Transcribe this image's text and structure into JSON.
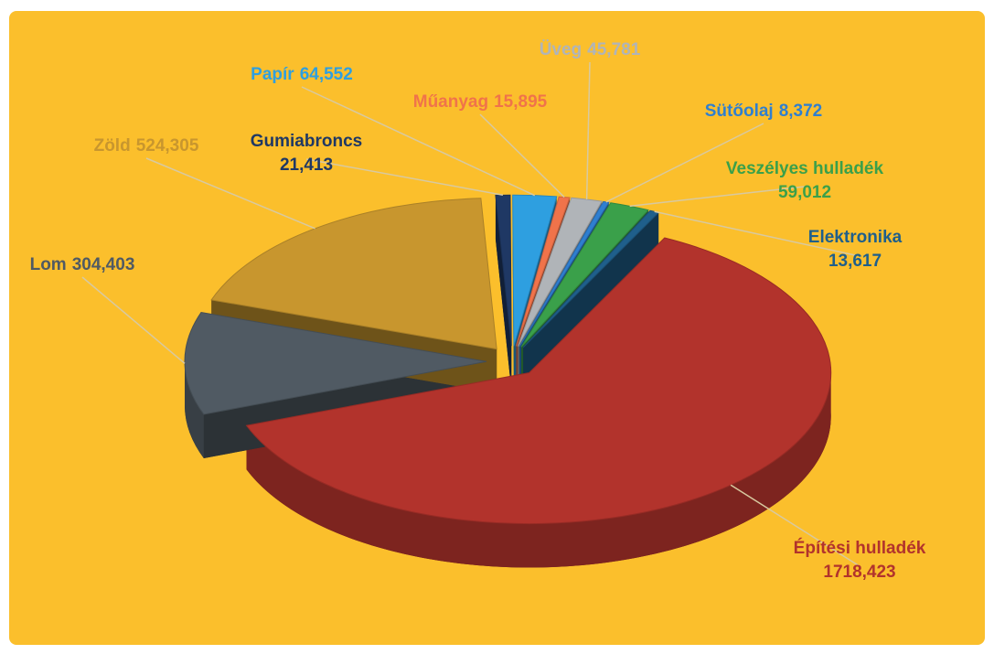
{
  "chart_data": {
    "type": "pie",
    "categories": [
      "Gumiabroncs",
      "Papír",
      "Műanyag",
      "Üveg",
      "Sütőolaj",
      "Veszélyes hulladék",
      "Elektronika",
      "Építési hulladék",
      "Lom",
      "Zöld"
    ],
    "values": [
      21.413,
      64.552,
      15.895,
      45.781,
      8.372,
      59.012,
      13.617,
      1718.423,
      304.403,
      524.305
    ],
    "value_labels": [
      "21,413",
      "64,552",
      "15,895",
      "45,781",
      "8,372",
      "59,012",
      "13,617",
      "1718,423",
      "304,403",
      "524,305"
    ],
    "colors": [
      "#1f3864",
      "#2e9fe0",
      "#f0734a",
      "#b0b4b8",
      "#2f7fd0",
      "#3aa04a",
      "#1f5f8b",
      "#b2332c",
      "#505a63",
      "#c8962e"
    ]
  }
}
